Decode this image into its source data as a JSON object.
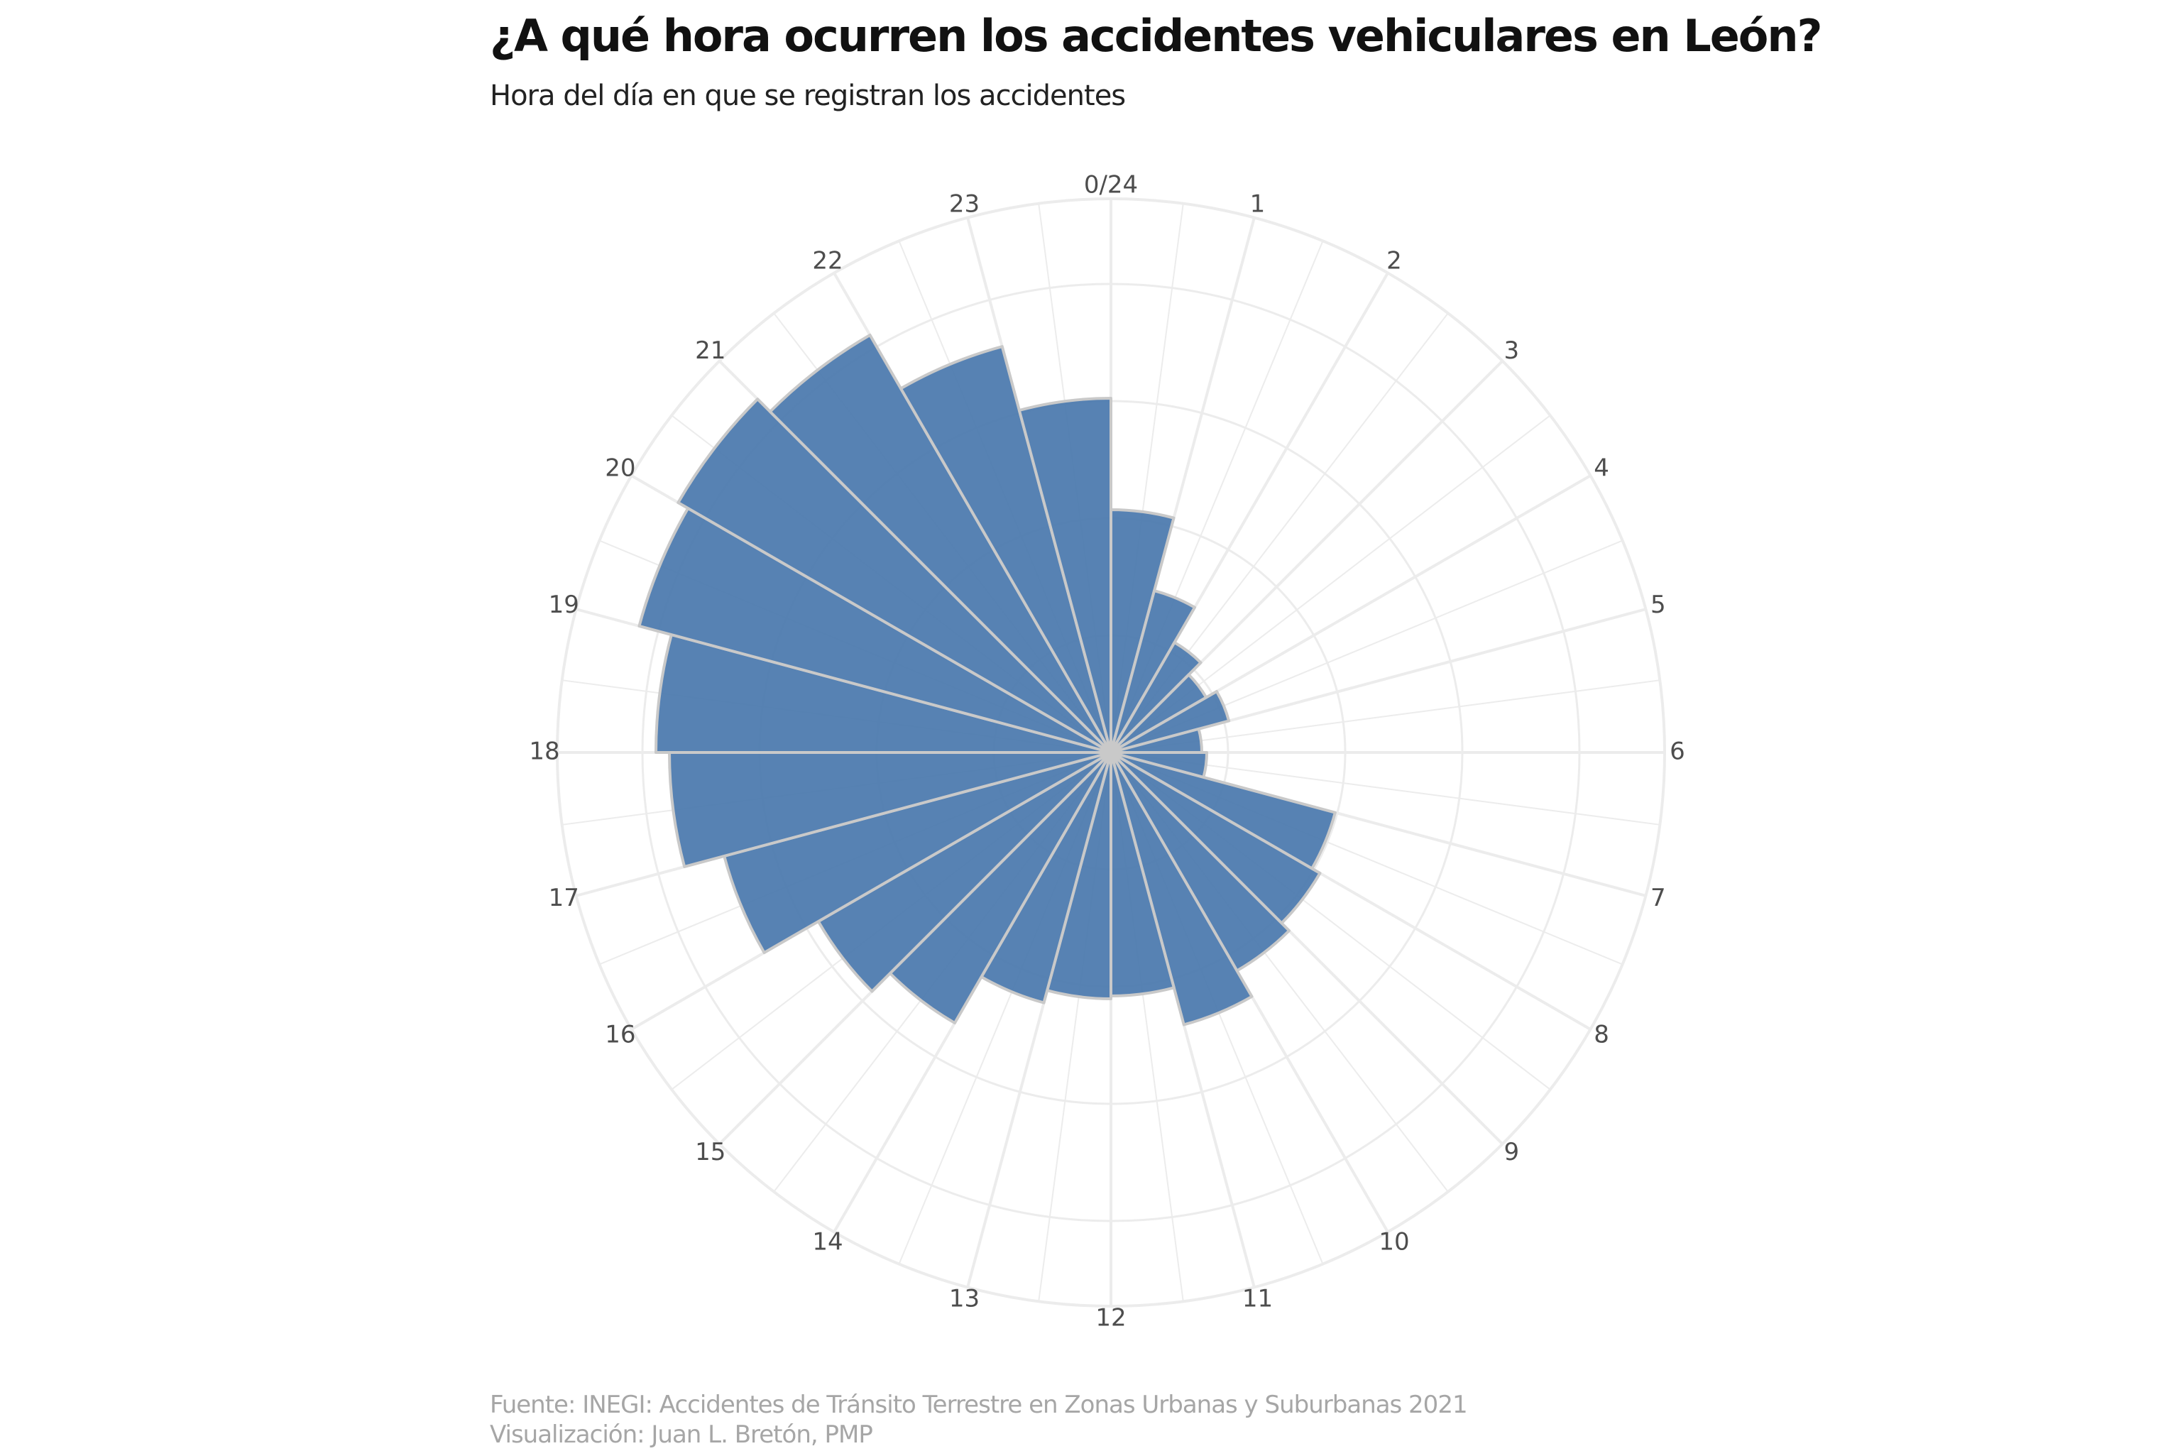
{
  "chart_data": {
    "type": "bar",
    "polar": true,
    "title": "¿A qué hora ocurren los accidentes vehiculares en León?",
    "subtitle": "Hora del día en que se registran los accidentes",
    "caption": [
      "Fuente: INEGI: Accidentes de Tránsito Terrestre en Zonas Urbanas y Suburbanas 2021",
      "Visualización: Juan L. Bretón, PMP"
    ],
    "categories": [
      "0/24",
      "1",
      "2",
      "3",
      "4",
      "5",
      "6",
      "7",
      "8",
      "9",
      "10",
      "11",
      "12",
      "13",
      "14",
      "15",
      "16",
      "17",
      "18",
      "19",
      "20",
      "21",
      "22",
      "23"
    ],
    "values": [
      342,
      236,
      179,
      155,
      172,
      128,
      135,
      327,
      340,
      355,
      397,
      343,
      347,
      365,
      440,
      476,
      564,
      622,
      641,
      688,
      704,
      679,
      592,
      499
    ],
    "rlim": [
      0,
      780
    ],
    "colors": {
      "bar_fill": "#4a78ad",
      "bar_edge": "#c9c9c9",
      "grid": "#ececec"
    },
    "grid": true
  }
}
